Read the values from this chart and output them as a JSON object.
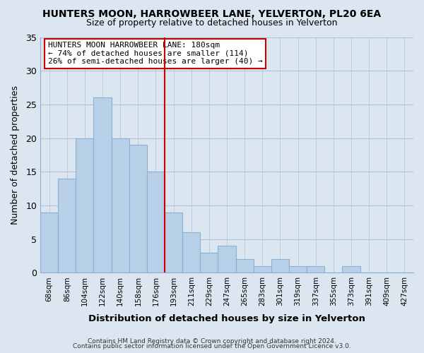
{
  "title": "HUNTERS MOON, HARROWBEER LANE, YELVERTON, PL20 6EA",
  "subtitle": "Size of property relative to detached houses in Yelverton",
  "xlabel": "Distribution of detached houses by size in Yelverton",
  "ylabel": "Number of detached properties",
  "footer_line1": "Contains HM Land Registry data © Crown copyright and database right 2024.",
  "footer_line2": "Contains public sector information licensed under the Open Government Licence v3.0.",
  "bar_labels": [
    "68sqm",
    "86sqm",
    "104sqm",
    "122sqm",
    "140sqm",
    "158sqm",
    "176sqm",
    "193sqm",
    "211sqm",
    "229sqm",
    "247sqm",
    "265sqm",
    "283sqm",
    "301sqm",
    "319sqm",
    "337sqm",
    "355sqm",
    "373sqm",
    "391sqm",
    "409sqm",
    "427sqm"
  ],
  "bar_values": [
    9,
    14,
    20,
    26,
    20,
    19,
    15,
    9,
    6,
    3,
    4,
    2,
    1,
    2,
    1,
    1,
    0,
    1,
    0,
    0,
    0
  ],
  "bar_color": "#b8cfe8",
  "bar_edge_color": "#8aafd4",
  "vline_color": "#cc0000",
  "annotation_title": "HUNTERS MOON HARROWBEER LANE: 180sqm",
  "annotation_line2": "← 74% of detached houses are smaller (114)",
  "annotation_line3": "26% of semi-detached houses are larger (40) →",
  "annotation_box_edge": "#cc0000",
  "ylim": [
    0,
    35
  ],
  "yticks": [
    0,
    5,
    10,
    15,
    20,
    25,
    30,
    35
  ],
  "background_color": "#dce6f0",
  "plot_bg_color": "#dce6f0",
  "grid_color": "#b0c4d8"
}
